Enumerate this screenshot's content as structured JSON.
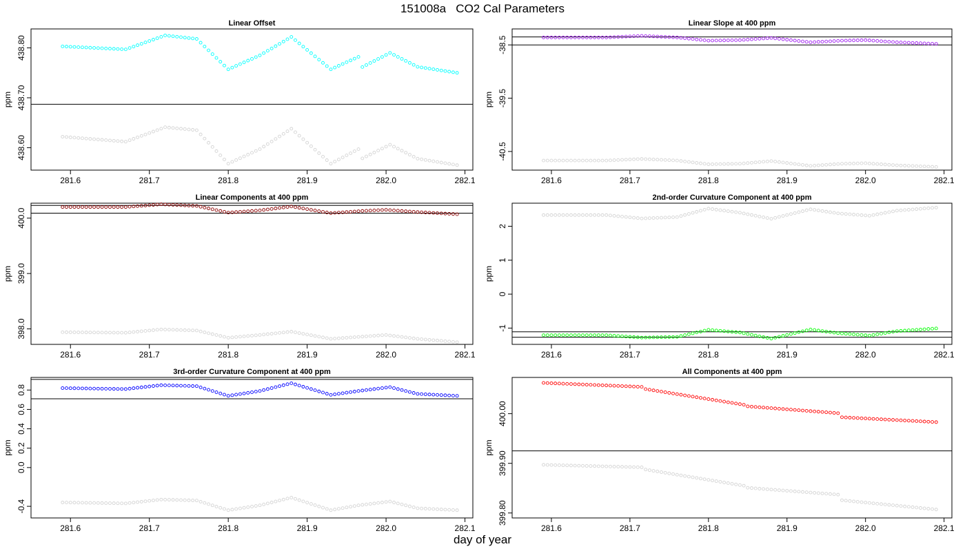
{
  "figure": {
    "title": "151008a   CO2 Cal Parameters",
    "xlabel": "day of year"
  },
  "chart_data": [
    {
      "type": "scatter",
      "title": "Linear Offset",
      "ylabel": "ppm",
      "xlim": [
        281.55,
        282.11
      ],
      "ylim": [
        438.555,
        438.838
      ],
      "xticks": [
        "281.6",
        "281.7",
        "281.8",
        "281.9",
        "282.0",
        "282.1"
      ],
      "yticks": [
        "438.60",
        "438.70",
        "438.80"
      ],
      "hlines": [
        438.687
      ],
      "series": [
        {
          "color": "#00ffff",
          "shape": [
            [
              281.59,
              438.803
            ],
            [
              281.67,
              438.797
            ],
            [
              281.72,
              438.825
            ],
            [
              281.76,
              438.818
            ],
            [
              281.8,
              438.757
            ],
            [
              281.84,
              438.785
            ],
            [
              281.88,
              438.822
            ],
            [
              281.93,
              438.757
            ],
            [
              281.965,
              438.782
            ],
            [
              281.968,
              438.76
            ],
            [
              282.005,
              438.79
            ],
            [
              282.04,
              438.762
            ],
            [
              282.09,
              438.75
            ]
          ]
        },
        {
          "color": "#d3d3d3",
          "shape": [
            [
              281.59,
              438.622
            ],
            [
              281.67,
              438.612
            ],
            [
              281.72,
              438.641
            ],
            [
              281.76,
              438.635
            ],
            [
              281.8,
              438.568
            ],
            [
              281.84,
              438.597
            ],
            [
              281.88,
              438.638
            ],
            [
              281.93,
              438.568
            ],
            [
              281.965,
              438.597
            ],
            [
              281.968,
              438.577
            ],
            [
              282.005,
              438.606
            ],
            [
              282.04,
              438.578
            ],
            [
              282.09,
              438.565
            ]
          ]
        }
      ]
    },
    {
      "type": "scatter",
      "title": "Linear Slope at 400 ppm",
      "ylabel": "ppm",
      "xlim": [
        281.55,
        282.11
      ],
      "ylim": [
        -40.85,
        -38.2
      ],
      "xticks": [
        "281.6",
        "281.7",
        "281.8",
        "281.9",
        "282.0",
        "282.1"
      ],
      "yticks": [
        "-40.5",
        "-39.5",
        "-38.5"
      ],
      "hlines": [
        -38.35,
        -38.5
      ],
      "series": [
        {
          "color": "#a020f0",
          "shape": [
            [
              281.59,
              -38.36
            ],
            [
              281.67,
              -38.36
            ],
            [
              281.715,
              -38.33
            ],
            [
              281.76,
              -38.36
            ],
            [
              281.8,
              -38.42
            ],
            [
              281.84,
              -38.41
            ],
            [
              281.88,
              -38.37
            ],
            [
              281.93,
              -38.45
            ],
            [
              281.97,
              -38.42
            ],
            [
              282.0,
              -38.41
            ],
            [
              282.04,
              -38.45
            ],
            [
              282.09,
              -38.48
            ]
          ]
        },
        {
          "color": "#d3d3d3",
          "shape": [
            [
              281.59,
              -40.67
            ],
            [
              281.67,
              -40.67
            ],
            [
              281.715,
              -40.64
            ],
            [
              281.76,
              -40.67
            ],
            [
              281.8,
              -40.74
            ],
            [
              281.84,
              -40.73
            ],
            [
              281.88,
              -40.68
            ],
            [
              281.93,
              -40.77
            ],
            [
              281.97,
              -40.73
            ],
            [
              282.0,
              -40.72
            ],
            [
              282.04,
              -40.76
            ],
            [
              282.09,
              -40.79
            ]
          ]
        }
      ]
    },
    {
      "type": "scatter",
      "title": "Linear Components at 400 ppm",
      "ylabel": "ppm",
      "xlim": [
        281.55,
        282.11
      ],
      "ylim": [
        397.72,
        400.27
      ],
      "xticks": [
        "281.6",
        "281.7",
        "281.8",
        "281.9",
        "282.0",
        "282.1"
      ],
      "yticks": [
        "398.0",
        "399.0",
        "400.0"
      ],
      "hlines": [
        400.23,
        400.09
      ],
      "series": [
        {
          "color": "#8b0000",
          "shape": [
            [
              281.59,
              400.2
            ],
            [
              281.67,
              400.2
            ],
            [
              281.715,
              400.25
            ],
            [
              281.76,
              400.22
            ],
            [
              281.8,
              400.1
            ],
            [
              281.84,
              400.14
            ],
            [
              281.88,
              400.21
            ],
            [
              281.93,
              400.09
            ],
            [
              281.97,
              400.13
            ],
            [
              282.0,
              400.15
            ],
            [
              282.04,
              400.11
            ],
            [
              282.09,
              400.07
            ]
          ]
        },
        {
          "color": "#d3d3d3",
          "shape": [
            [
              281.59,
              397.94
            ],
            [
              281.67,
              397.93
            ],
            [
              281.715,
              397.99
            ],
            [
              281.76,
              397.97
            ],
            [
              281.8,
              397.84
            ],
            [
              281.84,
              397.89
            ],
            [
              281.88,
              397.95
            ],
            [
              281.93,
              397.82
            ],
            [
              281.97,
              397.86
            ],
            [
              282.0,
              397.89
            ],
            [
              282.04,
              397.82
            ],
            [
              282.09,
              397.76
            ]
          ]
        }
      ]
    },
    {
      "type": "scatter",
      "title": "2nd-order Curvature Component at 400 ppm",
      "ylabel": "ppm",
      "xlim": [
        281.55,
        282.11
      ],
      "ylim": [
        -1.48,
        2.68
      ],
      "xticks": [
        "281.6",
        "281.7",
        "281.8",
        "281.9",
        "282.0",
        "282.1"
      ],
      "yticks": [
        "-1",
        "0",
        "1",
        "2"
      ],
      "hlines": [
        -1.11,
        -1.27
      ],
      "series": [
        {
          "color": "#00ff00",
          "shape": [
            [
              281.59,
              -1.21
            ],
            [
              281.67,
              -1.21
            ],
            [
              281.715,
              -1.28
            ],
            [
              281.76,
              -1.26
            ],
            [
              281.8,
              -1.05
            ],
            [
              281.84,
              -1.13
            ],
            [
              281.88,
              -1.31
            ],
            [
              281.93,
              -1.04
            ],
            [
              281.965,
              -1.15
            ],
            [
              282.005,
              -1.22
            ],
            [
              282.04,
              -1.09
            ],
            [
              282.09,
              -1.01
            ]
          ]
        },
        {
          "color": "#d3d3d3",
          "shape": [
            [
              281.59,
              2.33
            ],
            [
              281.67,
              2.33
            ],
            [
              281.715,
              2.23
            ],
            [
              281.76,
              2.27
            ],
            [
              281.8,
              2.52
            ],
            [
              281.84,
              2.4
            ],
            [
              281.88,
              2.22
            ],
            [
              281.93,
              2.5
            ],
            [
              281.965,
              2.38
            ],
            [
              282.005,
              2.31
            ],
            [
              282.04,
              2.46
            ],
            [
              282.09,
              2.55
            ]
          ]
        }
      ]
    },
    {
      "type": "scatter",
      "title": "3rd-order Curvature Component at 400 ppm",
      "ylabel": "ppm",
      "xlim": [
        281.55,
        282.11
      ],
      "ylim": [
        -0.52,
        0.93
      ],
      "xticks": [
        "281.6",
        "281.7",
        "281.8",
        "281.9",
        "282.0",
        "282.1"
      ],
      "yticks": [
        "-0.4",
        "0.0",
        "0.2",
        "0.4",
        "0.6",
        "0.8"
      ],
      "hlines": [
        0.91,
        0.71
      ],
      "series": [
        {
          "color": "#0000ff",
          "shape": [
            [
              281.59,
              0.82
            ],
            [
              281.67,
              0.81
            ],
            [
              281.715,
              0.85
            ],
            [
              281.76,
              0.84
            ],
            [
              281.8,
              0.74
            ],
            [
              281.84,
              0.79
            ],
            [
              281.88,
              0.87
            ],
            [
              281.93,
              0.75
            ],
            [
              281.965,
              0.79
            ],
            [
              282.005,
              0.83
            ],
            [
              282.04,
              0.76
            ],
            [
              282.09,
              0.74
            ]
          ]
        },
        {
          "color": "#d3d3d3",
          "shape": [
            [
              281.59,
              -0.36
            ],
            [
              281.67,
              -0.37
            ],
            [
              281.715,
              -0.33
            ],
            [
              281.76,
              -0.34
            ],
            [
              281.8,
              -0.44
            ],
            [
              281.84,
              -0.39
            ],
            [
              281.88,
              -0.31
            ],
            [
              281.93,
              -0.44
            ],
            [
              281.965,
              -0.39
            ],
            [
              282.005,
              -0.35
            ],
            [
              282.04,
              -0.42
            ],
            [
              282.09,
              -0.44
            ]
          ]
        }
      ]
    },
    {
      "type": "scatter",
      "title": "All Components at 400 ppm",
      "ylabel": "ppm",
      "xlim": [
        281.55,
        282.11
      ],
      "ylim": [
        399.79,
        400.073
      ],
      "xticks": [
        "281.6",
        "281.7",
        "281.8",
        "281.9",
        "282.0",
        "282.1"
      ],
      "yticks": [
        "399.80",
        "399.90",
        "400.00"
      ],
      "hlines": [
        399.925
      ],
      "series": [
        {
          "color": "#ff0000",
          "shape": [
            [
              281.59,
              400.062
            ],
            [
              281.715,
              400.054
            ],
            [
              281.718,
              400.05
            ],
            [
              281.845,
              400.018
            ],
            [
              281.848,
              400.015
            ],
            [
              281.965,
              400.001
            ],
            [
              281.968,
              399.993
            ],
            [
              282.09,
              399.983
            ]
          ]
        },
        {
          "color": "#d3d3d3",
          "shape": [
            [
              281.59,
              399.897
            ],
            [
              281.715,
              399.892
            ],
            [
              281.718,
              399.888
            ],
            [
              281.845,
              399.855
            ],
            [
              281.848,
              399.851
            ],
            [
              281.965,
              399.837
            ],
            [
              281.968,
              399.826
            ],
            [
              282.09,
              399.807
            ]
          ]
        }
      ]
    }
  ]
}
